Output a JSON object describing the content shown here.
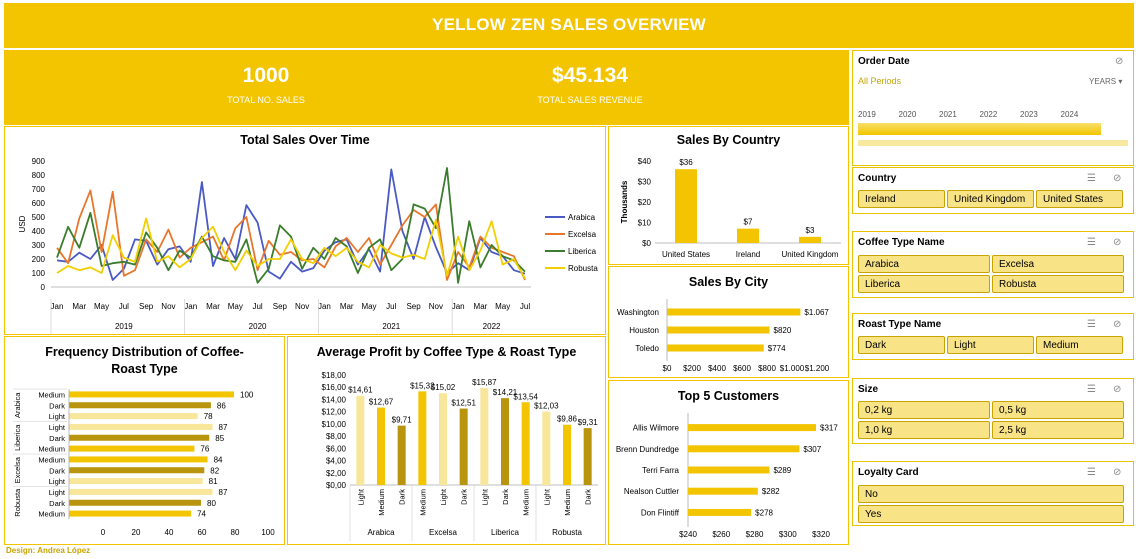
{
  "header": {
    "title": "YELLOW ZEN SALES OVERVIEW"
  },
  "kpis": {
    "total_sales_value": "1000",
    "total_sales_label": "TOTAL NO. SALES",
    "revenue_value": "$45.134",
    "revenue_label": "TOTAL SALES REVENUE"
  },
  "footer": {
    "credit": "Design: Andrea López"
  },
  "colors": {
    "brand_yellow": "#f2c500",
    "arabica": "#4a5ac4",
    "excelsa": "#e8762c",
    "liberica": "#3a7d2c",
    "robusta": "#f2cf00"
  },
  "slicers": {
    "order_date": {
      "title": "Order Date",
      "selection": "All Periods",
      "level": "YEARS",
      "years": [
        "2019",
        "2020",
        "2021",
        "2022",
        "2023",
        "2024"
      ]
    },
    "country": {
      "title": "Country",
      "items": [
        "Ireland",
        "United Kingdom",
        "United States"
      ]
    },
    "coffee_type": {
      "title": "Coffee Type Name",
      "items": [
        "Arabica",
        "Excelsa",
        "Liberica",
        "Robusta"
      ]
    },
    "roast_type": {
      "title": "Roast Type Name",
      "items": [
        "Dark",
        "Light",
        "Medium"
      ]
    },
    "size": {
      "title": "Size",
      "items": [
        "0,2 kg",
        "0,5 kg",
        "1,0 kg",
        "2,5 kg"
      ]
    },
    "loyalty": {
      "title": "Loyalty Card",
      "items": [
        "No",
        "Yes"
      ]
    }
  },
  "chart_data": [
    {
      "id": "time",
      "type": "line",
      "title": "Total Sales Over Time",
      "ylabel": "USD",
      "ylim": [
        0,
        900
      ],
      "yticks": [
        0,
        100,
        200,
        300,
        400,
        500,
        600,
        700,
        800,
        900
      ],
      "month_ticks": [
        "Jan",
        "Mar",
        "May",
        "Jul",
        "Sep",
        "Nov",
        "Jan",
        "Mar",
        "May",
        "Jul",
        "Sep",
        "Nov",
        "Jan",
        "Mar",
        "May",
        "Jul",
        "Sep",
        "Nov",
        "Jan",
        "Mar",
        "May",
        "Jul"
      ],
      "years": [
        "2019",
        "2020",
        "2021",
        "2022"
      ],
      "legend_position": "right",
      "series": [
        {
          "name": "Arabica",
          "color": "#4a5ac4",
          "values": [
            190,
            180,
            245,
            200,
            300,
            50,
            130,
            340,
            330,
            160,
            270,
            290,
            180,
            750,
            150,
            350,
            200,
            585,
            460,
            110,
            60,
            180,
            110,
            135,
            260,
            320,
            340,
            160,
            270,
            110,
            840,
            400,
            200,
            500,
            285,
            100,
            170,
            120,
            350,
            250,
            220,
            120,
            95
          ]
        },
        {
          "name": "Excelsa",
          "color": "#e8762c",
          "values": [
            280,
            170,
            490,
            690,
            250,
            680,
            80,
            120,
            340,
            250,
            410,
            210,
            280,
            320,
            360,
            190,
            420,
            500,
            120,
            330,
            230,
            250,
            190,
            200,
            140,
            290,
            350,
            250,
            350,
            160,
            300,
            440,
            550,
            500,
            590,
            50,
            250,
            140,
            360,
            280,
            250,
            220,
            50
          ]
        },
        {
          "name": "Liberica",
          "color": "#3a7d2c",
          "values": [
            210,
            430,
            280,
            530,
            150,
            170,
            180,
            160,
            390,
            280,
            120,
            260,
            210,
            360,
            220,
            190,
            180,
            340,
            30,
            130,
            440,
            360,
            130,
            280,
            200,
            350,
            290,
            100,
            280,
            340,
            120,
            200,
            590,
            560,
            420,
            850,
            30,
            470,
            140,
            300,
            220,
            190,
            110
          ]
        },
        {
          "name": "Robusta",
          "color": "#f2cf00",
          "values": [
            100,
            150,
            120,
            140,
            100,
            370,
            210,
            180,
            490,
            180,
            220,
            140,
            200,
            350,
            430,
            250,
            120,
            260,
            150,
            200,
            200,
            340,
            200,
            170,
            280,
            220,
            280,
            180,
            140,
            300,
            240,
            210,
            230,
            200,
            480,
            80,
            360,
            120,
            260,
            470,
            160,
            200,
            60
          ]
        }
      ]
    },
    {
      "id": "country",
      "type": "bar",
      "title": "Sales By Country",
      "ylabel": "Thousands",
      "ylim": [
        0,
        40
      ],
      "yticks": [
        "$0",
        "$10",
        "$20",
        "$30",
        "$40"
      ],
      "categories": [
        "United States",
        "Ireland",
        "United Kingdom"
      ],
      "values": [
        36,
        7,
        3
      ],
      "labels": [
        "$36",
        "$7",
        "$3"
      ]
    },
    {
      "id": "city",
      "type": "bar",
      "title": "Sales By City",
      "categories": [
        "Washington",
        "Houston",
        "Toledo"
      ],
      "values": [
        1067,
        820,
        774
      ],
      "labels": [
        "$1.067",
        "$820",
        "$774"
      ],
      "xlim": [
        0,
        1200
      ],
      "xticks": [
        "$0",
        "$200",
        "$400",
        "$600",
        "$800",
        "$1.000",
        "$1.200"
      ]
    },
    {
      "id": "customers",
      "type": "bar",
      "title": "Top 5 Customers",
      "categories": [
        "Allis Wilmore",
        "Brenn Dundredge",
        "Terri Farra",
        "Nealson Cuttler",
        "Don Flintiff"
      ],
      "values": [
        317,
        307,
        289,
        282,
        278
      ],
      "labels": [
        "$317",
        "$307",
        "$289",
        "$282",
        "$278"
      ],
      "xlim": [
        240,
        320
      ],
      "xticks": [
        "$240",
        "$260",
        "$280",
        "$300",
        "$320"
      ]
    },
    {
      "id": "freq",
      "type": "bar",
      "title": "Frequency Distribution of Coffee-Roast Type",
      "title_lines": [
        "Frequency Distribution of Coffee-",
        "Roast Type"
      ],
      "xlim": [
        0,
        120
      ],
      "xticks": [
        "0",
        "20",
        "40",
        "60",
        "80",
        "100",
        "120"
      ],
      "groups": [
        {
          "name": "Arabica",
          "rows": [
            {
              "roast": "Medium",
              "value": 100
            },
            {
              "roast": "Dark",
              "value": 86
            },
            {
              "roast": "Light",
              "value": 78
            }
          ]
        },
        {
          "name": "Liberica",
          "rows": [
            {
              "roast": "Light",
              "value": 87
            },
            {
              "roast": "Dark",
              "value": 85
            },
            {
              "roast": "Medium",
              "value": 76
            }
          ]
        },
        {
          "name": "Excelsa",
          "rows": [
            {
              "roast": "Medium",
              "value": 84
            },
            {
              "roast": "Dark",
              "value": 82
            },
            {
              "roast": "Light",
              "value": 81
            }
          ]
        },
        {
          "name": "Robusta",
          "rows": [
            {
              "roast": "Light",
              "value": 87
            },
            {
              "roast": "Dark",
              "value": 80
            },
            {
              "roast": "Medium",
              "value": 74
            }
          ]
        }
      ]
    },
    {
      "id": "profit",
      "type": "bar",
      "title": "Average Profit by Coffee Type & Roast Type",
      "ylim": [
        0,
        18
      ],
      "yticks": [
        "$0,00",
        "$2,00",
        "$4,00",
        "$6,00",
        "$8,00",
        "$10,00",
        "$12,00",
        "$14,00",
        "$16,00",
        "$18,00"
      ],
      "groups": [
        {
          "name": "Arabica",
          "bars": [
            {
              "roast": "Light",
              "value": 14.61,
              "label": "$14,61"
            },
            {
              "roast": "Medium",
              "value": 12.67,
              "label": "$12,67"
            },
            {
              "roast": "Dark",
              "value": 9.71,
              "label": "$9,71"
            }
          ]
        },
        {
          "name": "Excelsa",
          "bars": [
            {
              "roast": "Medium",
              "value": 15.32,
              "label": "$15,32"
            },
            {
              "roast": "Light",
              "value": 15.02,
              "label": "$15,02"
            },
            {
              "roast": "Dark",
              "value": 12.51,
              "label": "$12,51"
            }
          ]
        },
        {
          "name": "Liberica",
          "bars": [
            {
              "roast": "Light",
              "value": 15.87,
              "label": "$15,87"
            },
            {
              "roast": "Dark",
              "value": 14.21,
              "label": "$14,21"
            },
            {
              "roast": "Medium",
              "value": 13.54,
              "label": "$13,54"
            }
          ]
        },
        {
          "name": "Robusta",
          "bars": [
            {
              "roast": "Light",
              "value": 12.03,
              "label": "$12,03"
            },
            {
              "roast": "Medium",
              "value": 9.86,
              "label": "$9,86"
            },
            {
              "roast": "Dark",
              "value": 9.31,
              "label": "$9,31"
            }
          ]
        }
      ]
    }
  ]
}
